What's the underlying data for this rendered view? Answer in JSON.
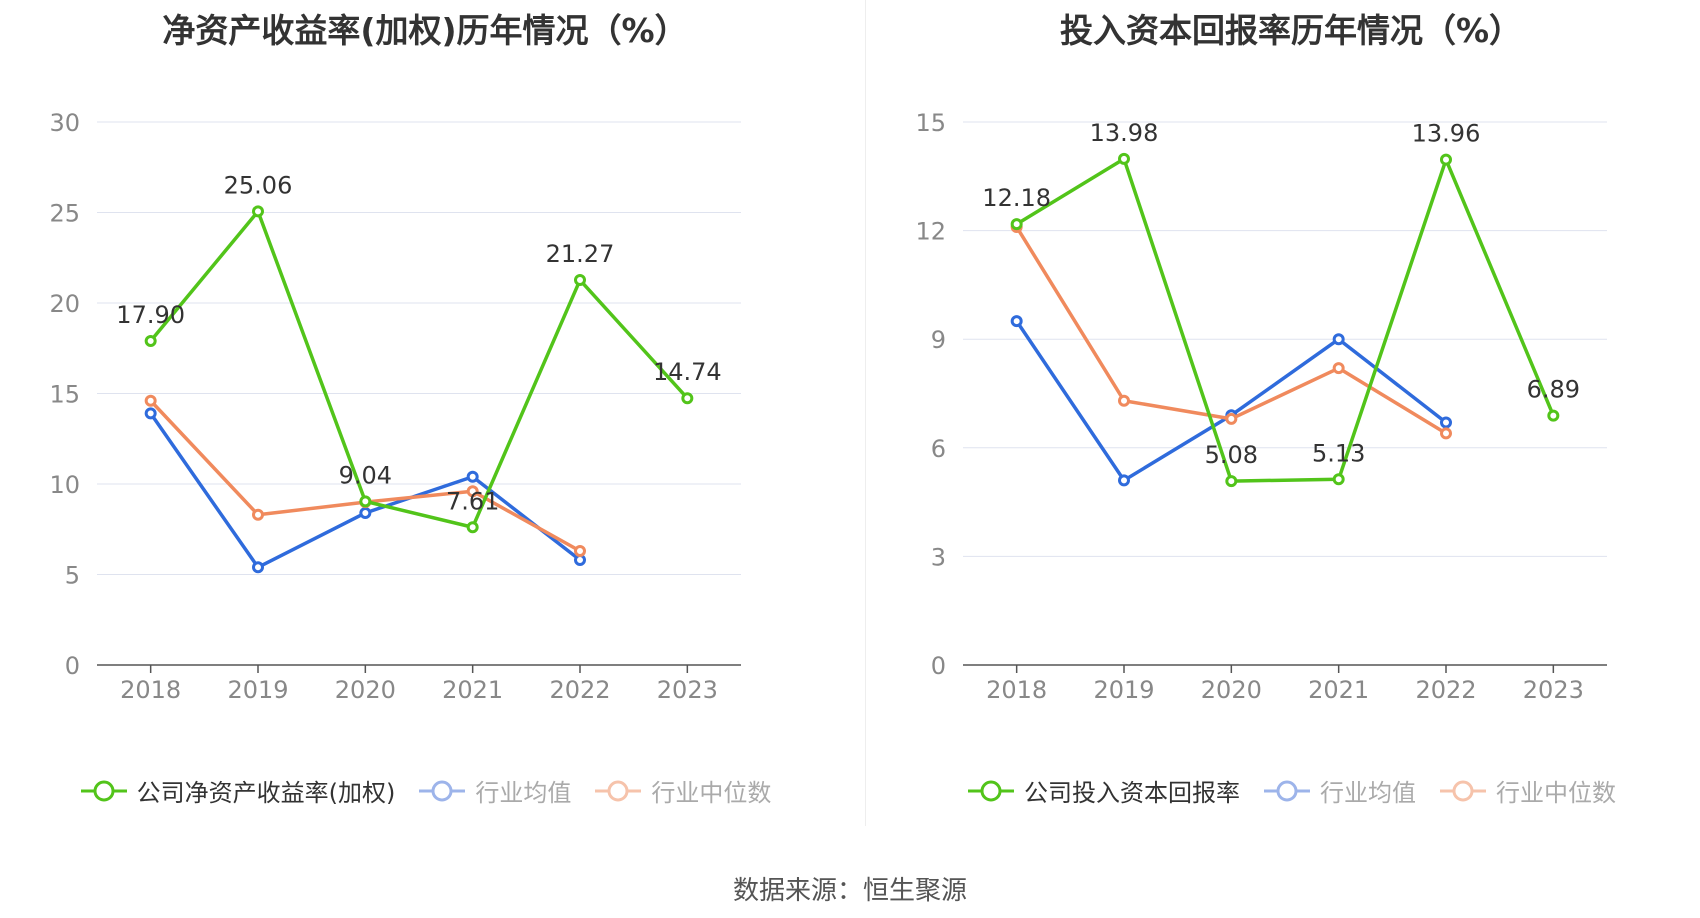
{
  "source": "数据来源：恒生聚源",
  "chart_data": [
    {
      "type": "line",
      "title": "净资产收益率(加权)历年情况（%）",
      "categories": [
        "2018",
        "2019",
        "2020",
        "2021",
        "2022",
        "2023"
      ],
      "ylim": [
        0,
        30
      ],
      "yticks": [
        0,
        5,
        10,
        15,
        20,
        25,
        30
      ],
      "grid": true,
      "legend_position": "bottom",
      "series": [
        {
          "name": "公司净资产收益率(加权)",
          "color": "#52c41a",
          "values": [
            17.9,
            25.06,
            9.04,
            7.61,
            21.27,
            14.74
          ],
          "labels": [
            "17.90",
            "25.06",
            "9.04",
            "7.61",
            "21.27",
            "14.74"
          ]
        },
        {
          "name": "行业均值",
          "color": "#2f6bdc",
          "values": [
            13.9,
            5.4,
            8.4,
            10.4,
            5.8,
            null
          ]
        },
        {
          "name": "行业中位数",
          "color": "#f08a5d",
          "values": [
            14.6,
            8.3,
            9.0,
            9.6,
            6.3,
            null
          ]
        }
      ]
    },
    {
      "type": "line",
      "title": "投入资本回报率历年情况（%）",
      "categories": [
        "2018",
        "2019",
        "2020",
        "2021",
        "2022",
        "2023"
      ],
      "ylim": [
        0,
        15
      ],
      "yticks": [
        0,
        3,
        6,
        9,
        12,
        15
      ],
      "grid": true,
      "legend_position": "bottom",
      "series": [
        {
          "name": "公司投入资本回报率",
          "color": "#52c41a",
          "values": [
            12.18,
            13.98,
            5.08,
            5.13,
            13.96,
            6.89
          ],
          "labels": [
            "12.18",
            "13.98",
            "5.08",
            "5.13",
            "13.96",
            "6.89"
          ]
        },
        {
          "name": "行业均值",
          "color": "#2f6bdc",
          "values": [
            9.5,
            5.1,
            6.9,
            9.0,
            6.7,
            null
          ]
        },
        {
          "name": "行业中位数",
          "color": "#f08a5d",
          "values": [
            12.1,
            7.3,
            6.8,
            8.2,
            6.4,
            null
          ]
        }
      ]
    }
  ]
}
